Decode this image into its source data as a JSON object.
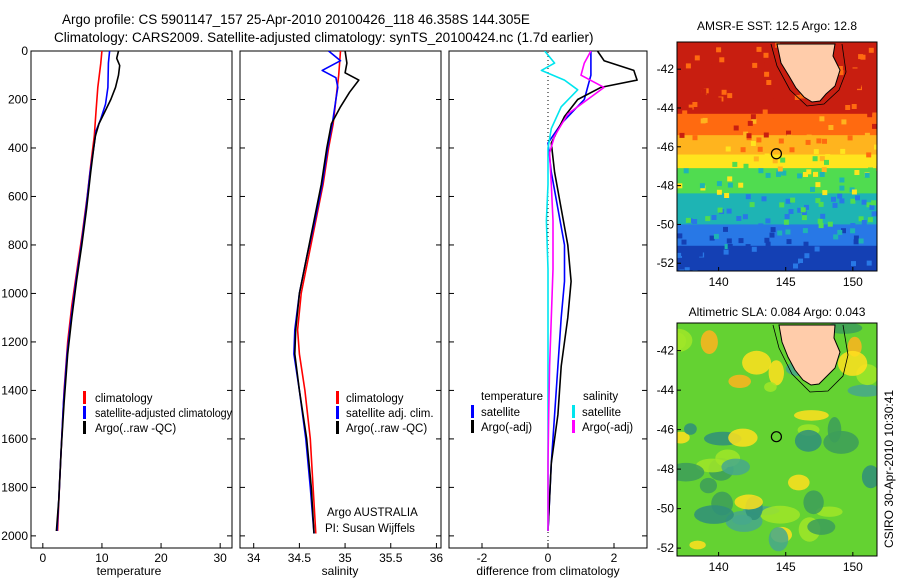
{
  "header": {
    "line1": "Argo profile: CS 5901147_157 25-Apr-2010 20100426_118 46.358S 144.305E",
    "line2": "Climatology: CARS2009. Satellite-adjusted climatology: synTS_20100424.nc (1.7d earlier)"
  },
  "footer_text": "CSIRO 30-Apr-2010 10:30:41",
  "colors": {
    "climatology": "#ff0000",
    "satellite": "#0000ff",
    "argo": "#000000",
    "sal_satellite": "#00e5ee",
    "sal_argo": "#ff00ff",
    "land": "#ffccaa"
  },
  "chart_data": [
    {
      "type": "line",
      "xlabel": "temperature",
      "ylabel": "",
      "xlim": [
        -2,
        32
      ],
      "ylim": [
        2050,
        0
      ],
      "xticks": [
        0,
        10,
        20,
        30
      ],
      "yticks": [
        0,
        200,
        400,
        600,
        800,
        1000,
        1200,
        1400,
        1600,
        1800,
        2000
      ],
      "legend": [
        "climatology",
        "satellite-adjusted climatology",
        "Argo(..raw -QC)"
      ],
      "series": [
        {
          "name": "climatology",
          "color": "#ff0000",
          "points": [
            [
              10.0,
              0
            ],
            [
              9.8,
              50
            ],
            [
              9.3,
              150
            ],
            [
              9.0,
              250
            ],
            [
              8.7,
              350
            ],
            [
              8.2,
              450
            ],
            [
              7.5,
              600
            ],
            [
              6.7,
              750
            ],
            [
              5.8,
              900
            ],
            [
              4.9,
              1050
            ],
            [
              4.2,
              1200
            ],
            [
              3.6,
              1400
            ],
            [
              3.2,
              1600
            ],
            [
              2.8,
              1800
            ],
            [
              2.5,
              1980
            ]
          ]
        },
        {
          "name": "satellite-adjusted climatology",
          "color": "#0000ff",
          "points": [
            [
              11.3,
              0
            ],
            [
              11.1,
              50
            ],
            [
              11.0,
              150
            ],
            [
              10.6,
              220
            ],
            [
              9.8,
              280
            ],
            [
              9.0,
              330
            ],
            [
              8.6,
              400
            ],
            [
              8.0,
              500
            ],
            [
              7.3,
              650
            ],
            [
              6.5,
              800
            ],
            [
              5.6,
              950
            ],
            [
              4.8,
              1100
            ],
            [
              4.1,
              1250
            ],
            [
              3.5,
              1450
            ],
            [
              3.1,
              1650
            ],
            [
              2.7,
              1850
            ],
            [
              2.4,
              1980
            ]
          ]
        },
        {
          "name": "Argo(..raw -QC)",
          "color": "#000000",
          "points": [
            [
              12.8,
              0
            ],
            [
              12.5,
              30
            ],
            [
              13.0,
              60
            ],
            [
              12.8,
              100
            ],
            [
              12.3,
              150
            ],
            [
              11.5,
              200
            ],
            [
              10.5,
              250
            ],
            [
              9.5,
              300
            ],
            [
              8.9,
              350
            ],
            [
              8.6,
              400
            ],
            [
              8.1,
              500
            ],
            [
              7.4,
              650
            ],
            [
              6.6,
              800
            ],
            [
              5.7,
              950
            ],
            [
              4.9,
              1100
            ],
            [
              4.2,
              1250
            ],
            [
              3.6,
              1450
            ],
            [
              3.1,
              1650
            ],
            [
              2.7,
              1850
            ],
            [
              2.3,
              1980
            ]
          ]
        }
      ]
    },
    {
      "type": "line",
      "xlabel": "salinity",
      "ylabel": "",
      "xlim": [
        33.85,
        36.05
      ],
      "ylim": [
        2050,
        0
      ],
      "xticks": [
        34,
        34.5,
        35,
        35.5,
        36
      ],
      "yticks": [
        0,
        200,
        400,
        600,
        800,
        1000,
        1200,
        1400,
        1600,
        1800,
        2000
      ],
      "legend": [
        "climatology",
        "satellite adj. clim.",
        "Argo(..raw -QC)"
      ],
      "annotations": [
        "Argo AUSTRALIA",
        "PI: Susan Wijffels"
      ],
      "series": [
        {
          "name": "climatology",
          "color": "#ff0000",
          "points": [
            [
              34.95,
              0
            ],
            [
              34.93,
              100
            ],
            [
              34.9,
              200
            ],
            [
              34.87,
              300
            ],
            [
              34.82,
              400
            ],
            [
              34.76,
              550
            ],
            [
              34.68,
              700
            ],
            [
              34.6,
              850
            ],
            [
              34.52,
              1000
            ],
            [
              34.48,
              1150
            ],
            [
              34.5,
              1250
            ],
            [
              34.56,
              1400
            ],
            [
              34.62,
              1600
            ],
            [
              34.65,
              1800
            ],
            [
              34.68,
              1990
            ]
          ]
        },
        {
          "name": "satellite adj. clim.",
          "color": "#0000ff",
          "points": [
            [
              34.82,
              0
            ],
            [
              34.95,
              40
            ],
            [
              34.75,
              80
            ],
            [
              34.9,
              110
            ],
            [
              34.92,
              150
            ],
            [
              34.9,
              200
            ],
            [
              34.86,
              300
            ],
            [
              34.81,
              400
            ],
            [
              34.75,
              550
            ],
            [
              34.67,
              700
            ],
            [
              34.58,
              850
            ],
            [
              34.5,
              1000
            ],
            [
              34.45,
              1150
            ],
            [
              34.44,
              1250
            ],
            [
              34.5,
              1400
            ],
            [
              34.57,
              1600
            ],
            [
              34.62,
              1800
            ],
            [
              34.66,
              1990
            ]
          ]
        },
        {
          "name": "Argo(..raw -QC)",
          "color": "#000000",
          "points": [
            [
              35.0,
              0
            ],
            [
              35.02,
              50
            ],
            [
              35.0,
              90
            ],
            [
              35.15,
              120
            ],
            [
              35.05,
              170
            ],
            [
              34.95,
              230
            ],
            [
              34.85,
              300
            ],
            [
              34.8,
              400
            ],
            [
              34.74,
              550
            ],
            [
              34.66,
              700
            ],
            [
              34.58,
              850
            ],
            [
              34.5,
              1000
            ],
            [
              34.46,
              1150
            ],
            [
              34.45,
              1250
            ],
            [
              34.5,
              1400
            ],
            [
              34.58,
              1600
            ],
            [
              34.63,
              1800
            ],
            [
              34.66,
              1990
            ]
          ]
        }
      ]
    },
    {
      "type": "line",
      "xlabel": "difference from climatology",
      "ylabel": "",
      "xlim": [
        -3.0,
        3.0
      ],
      "ylim": [
        2050,
        0
      ],
      "xticks": [
        -2,
        0,
        2
      ],
      "yticks": [
        0,
        200,
        400,
        600,
        800,
        1000,
        1200,
        1400,
        1600,
        1800,
        2000
      ],
      "legend_headers": [
        "temperature",
        "salinity"
      ],
      "legend": [
        "satellite",
        "Argo(-adj)",
        "satellite",
        "Argo(-adj)"
      ],
      "series": [
        {
          "name": "satellite",
          "group": "temperature",
          "color": "#0000ff",
          "points": [
            [
              1.3,
              0
            ],
            [
              1.3,
              100
            ],
            [
              1.1,
              200
            ],
            [
              0.4,
              300
            ],
            [
              0.0,
              380
            ],
            [
              0.1,
              500
            ],
            [
              0.3,
              650
            ],
            [
              0.5,
              800
            ],
            [
              0.5,
              950
            ],
            [
              0.4,
              1100
            ],
            [
              0.3,
              1300
            ],
            [
              0.2,
              1500
            ],
            [
              0.1,
              1700
            ],
            [
              0.0,
              1980
            ]
          ]
        },
        {
          "name": "Argo(-adj)",
          "group": "temperature",
          "color": "#000000",
          "points": [
            [
              1.5,
              0
            ],
            [
              1.7,
              40
            ],
            [
              2.6,
              80
            ],
            [
              2.7,
              120
            ],
            [
              1.6,
              150
            ],
            [
              0.9,
              200
            ],
            [
              0.5,
              270
            ],
            [
              0.1,
              380
            ],
            [
              0.2,
              500
            ],
            [
              0.4,
              650
            ],
            [
              0.6,
              800
            ],
            [
              0.7,
              950
            ],
            [
              0.6,
              1100
            ],
            [
              0.4,
              1300
            ],
            [
              0.3,
              1500
            ],
            [
              0.1,
              1700
            ],
            [
              0.0,
              1980
            ]
          ]
        },
        {
          "name": "satellite",
          "group": "salinity",
          "color": "#00e5ee",
          "points": [
            [
              -0.1,
              0
            ],
            [
              0.2,
              50
            ],
            [
              -0.2,
              80
            ],
            [
              0.5,
              120
            ],
            [
              0.9,
              160
            ],
            [
              0.4,
              230
            ],
            [
              0.1,
              320
            ],
            [
              0.0,
              400
            ],
            [
              0.0,
              550
            ],
            [
              -0.05,
              700
            ],
            [
              0.0,
              900
            ],
            [
              0.0,
              1100
            ],
            [
              0.0,
              1300
            ],
            [
              0.0,
              1500
            ],
            [
              0.0,
              1700
            ],
            [
              0.0,
              1980
            ]
          ]
        },
        {
          "name": "Argo(-adj)",
          "group": "salinity",
          "color": "#ff00ff",
          "points": [
            [
              1.3,
              0
            ],
            [
              1.1,
              50
            ],
            [
              1.0,
              100
            ],
            [
              1.7,
              150
            ],
            [
              1.2,
              200
            ],
            [
              0.6,
              260
            ],
            [
              0.2,
              350
            ],
            [
              0.05,
              420
            ],
            [
              0.1,
              550
            ],
            [
              0.15,
              700
            ],
            [
              0.15,
              900
            ],
            [
              0.1,
              1100
            ],
            [
              0.05,
              1300
            ],
            [
              0.02,
              1500
            ],
            [
              0.0,
              1700
            ],
            [
              0.0,
              1980
            ]
          ]
        }
      ]
    },
    {
      "type": "heatmap",
      "title": "AMSR-E SST: 12.5 Argo: 12.8",
      "xlim": [
        136.9,
        151.8
      ],
      "ylim": [
        -52.4,
        -40.6
      ],
      "xticks": [
        140,
        145,
        150
      ],
      "yticks": [
        -42,
        -44,
        -46,
        -48,
        -50,
        -52
      ],
      "marker": {
        "lon": 144.305,
        "lat": -46.358
      },
      "bands": [
        {
          "lat_from": -40.6,
          "lat_to": -44.3,
          "color": "#c81e10"
        },
        {
          "lat_from": -44.3,
          "lat_to": -45.4,
          "color": "#ff6a10"
        },
        {
          "lat_from": -45.4,
          "lat_to": -46.4,
          "color": "#ffb41e"
        },
        {
          "lat_from": -46.4,
          "lat_to": -47.1,
          "color": "#ffe41e"
        },
        {
          "lat_from": -47.1,
          "lat_to": -48.4,
          "color": "#50dc50"
        },
        {
          "lat_from": -48.4,
          "lat_to": -50.0,
          "color": "#1eb4b4"
        },
        {
          "lat_from": -50.0,
          "lat_to": -51.1,
          "color": "#2878e6"
        },
        {
          "lat_from": -51.1,
          "lat_to": -52.4,
          "color": "#1440b4"
        }
      ]
    },
    {
      "type": "heatmap",
      "title": "Altimetric SLA: 0.084 Argo: 0.043",
      "xlim": [
        136.9,
        151.8
      ],
      "ylim": [
        -52.4,
        -40.6
      ],
      "xticks": [
        140,
        145,
        150
      ],
      "yticks": [
        -42,
        -44,
        -46,
        -48,
        -50,
        -52
      ],
      "marker": {
        "lon": 144.305,
        "lat": -46.358
      },
      "background_color": "#64d232"
    }
  ]
}
